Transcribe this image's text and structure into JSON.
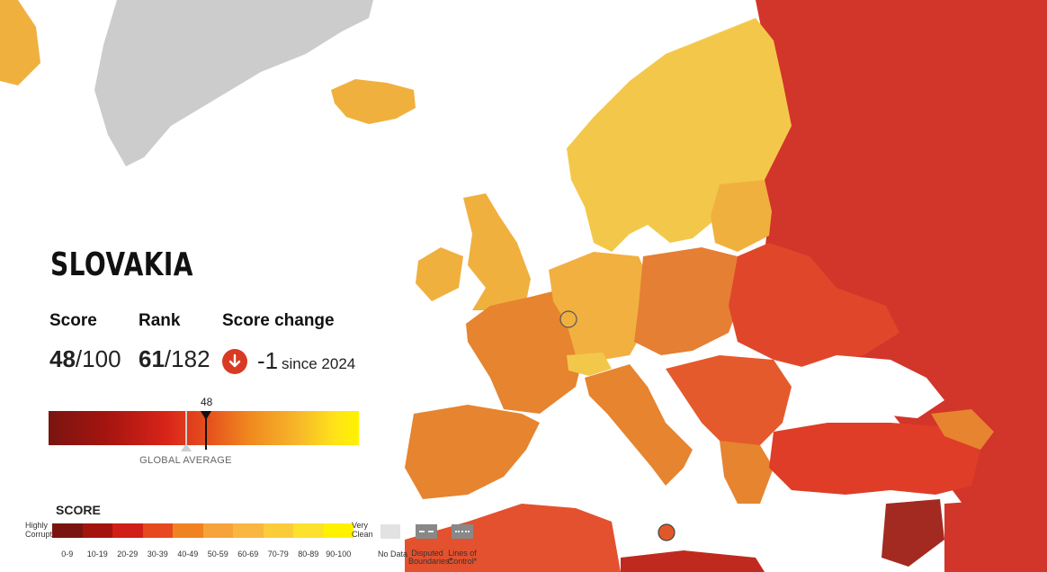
{
  "country_card": {
    "title": "SLOVAKIA",
    "score_label": "Score",
    "score_value": "48",
    "score_max": "/100",
    "rank_label": "Rank",
    "rank_value": "61",
    "rank_total": "/182",
    "change_label": "Score change",
    "change_value": "-1",
    "change_since": "since 2024",
    "change_direction": "down",
    "change_icon": "arrow-down-icon",
    "gauge_score_label": "48",
    "gauge_score": 48,
    "global_average_label": "GLOBAL AVERAGE"
  },
  "legend": {
    "title": "SCORE",
    "low_end": "Highly Corrupt",
    "high_end": "Very Clean",
    "bins": [
      {
        "label": "0-9",
        "color": "#7a1410"
      },
      {
        "label": "10-19",
        "color": "#a3140f"
      },
      {
        "label": "20-29",
        "color": "#cf1f16"
      },
      {
        "label": "30-39",
        "color": "#e6481f"
      },
      {
        "label": "40-49",
        "color": "#f08222"
      },
      {
        "label": "50-59",
        "color": "#f7a33b"
      },
      {
        "label": "60-69",
        "color": "#f9b640"
      },
      {
        "label": "70-79",
        "color": "#fbcc3a"
      },
      {
        "label": "80-89",
        "color": "#fde12c"
      },
      {
        "label": "90-100",
        "color": "#fff200"
      }
    ],
    "no_data": "No Data",
    "disputed": "Disputed Boundaries*",
    "lines_of_control": "Lines of Control*"
  },
  "colors": {
    "sea": "#ffffff",
    "land_bg": "#f4f4f4",
    "greenland": "#cccccc",
    "russia": "#d2352a",
    "nordic": "#f3c84a",
    "uk_ireland": "#f0b03e",
    "france_spain": "#e6842f",
    "germany": "#f2b040",
    "central": "#e57f34",
    "balkans": "#e45a2c",
    "turkey": "#df3d28",
    "syria": "#a32a20",
    "north_africa": "#e4512e",
    "marker": "#e0572a"
  }
}
